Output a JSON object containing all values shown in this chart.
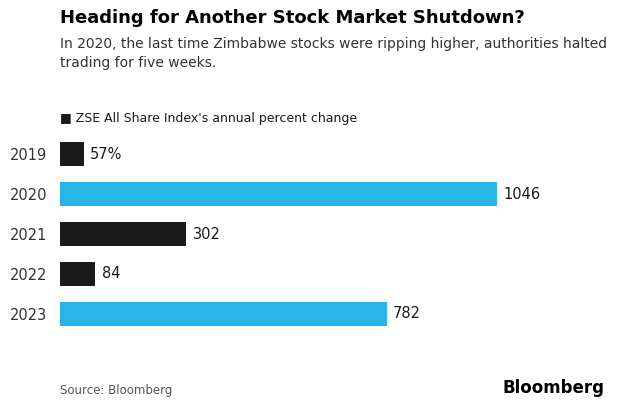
{
  "title": "Heading for Another Stock Market Shutdown?",
  "subtitle": "In 2020, the last time Zimbabwe stocks were ripping higher, authorities halted\ntrading for five weeks.",
  "legend_label": "■ ZSE All Share Index's annual percent change",
  "source": "Source: Bloomberg",
  "watermark": "Bloomberg",
  "years": [
    "2019",
    "2020",
    "2021",
    "2022",
    "2023"
  ],
  "values": [
    57,
    1046,
    302,
    84,
    782
  ],
  "labels": [
    "57%",
    "1046",
    "302",
    "84",
    "782"
  ],
  "bar_colors": [
    "#1a1a1a",
    "#29b5e8",
    "#1a1a1a",
    "#1a1a1a",
    "#29b5e8"
  ],
  "background_color": "#ffffff",
  "bar_height": 0.6,
  "xlim_max": 1150,
  "title_fontsize": 13,
  "subtitle_fontsize": 10,
  "legend_fontsize": 9,
  "tick_fontsize": 10.5,
  "label_fontsize": 10.5,
  "source_fontsize": 8.5,
  "watermark_fontsize": 12
}
